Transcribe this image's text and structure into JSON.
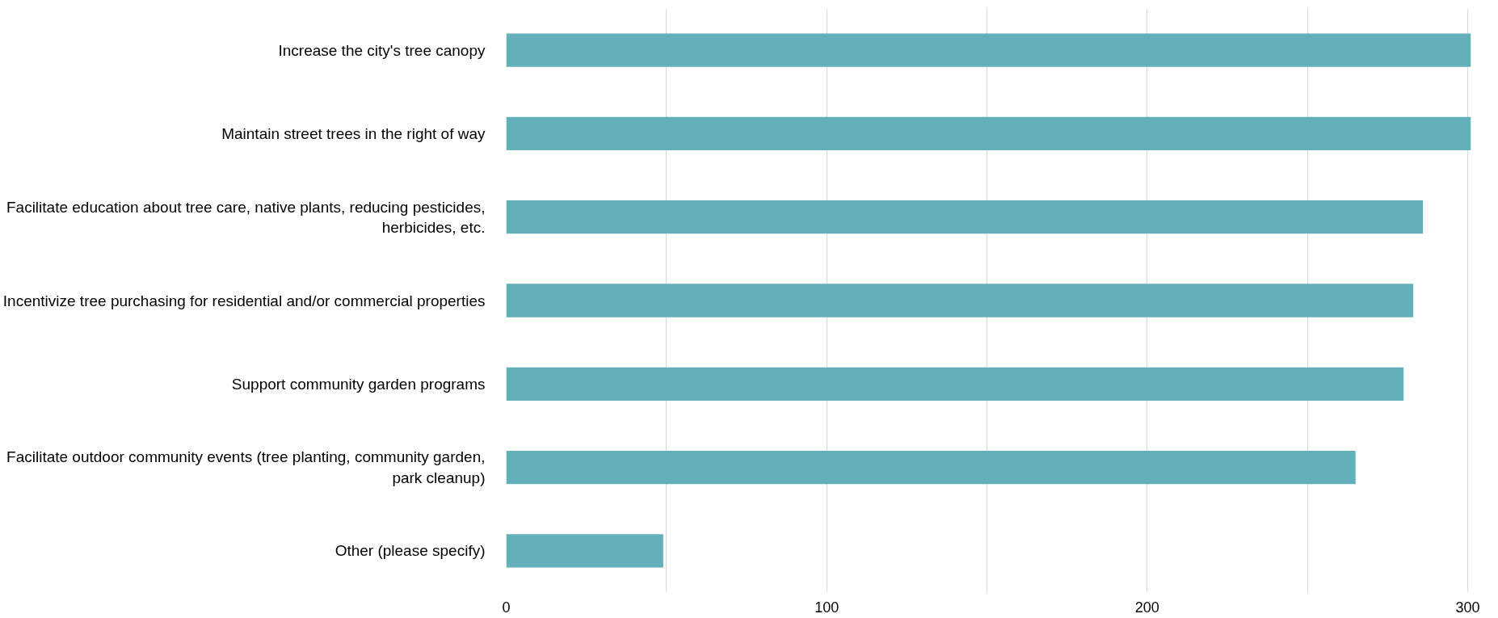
{
  "chart_data": {
    "type": "bar",
    "orientation": "horizontal",
    "categories": [
      "Increase the city's tree canopy",
      "Maintain street trees in the right of way",
      "Facilitate education about tree care, native plants, reducing pesticides, herbicides, etc.",
      "Incentivize tree purchasing for residential and/or commercial properties",
      "Support community garden programs",
      "Facilitate outdoor community events (tree planting, community garden, park cleanup)",
      "Other (please specify)"
    ],
    "values": [
      301,
      301,
      286,
      283,
      280,
      265,
      49
    ],
    "color": "#63b0bb",
    "xlim": [
      0,
      301
    ],
    "xticks": [
      0,
      {
        "value": 50,
        "label": null
      },
      100,
      {
        "value": 150,
        "label": null
      },
      200,
      {
        "value": 250,
        "label": null
      },
      300
    ],
    "grid": "x"
  }
}
